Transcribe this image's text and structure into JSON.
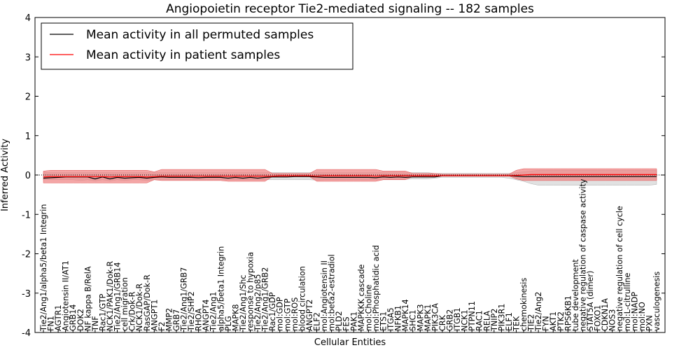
{
  "chart_data": {
    "type": "line",
    "title": "Angiopoietin receptor Tie2-mediated signaling -- 182 samples",
    "xlabel": "Cellular Entities",
    "ylabel": "Inferred Activity",
    "ylim": [
      -4,
      4
    ],
    "yticks": [
      "-4",
      "-3",
      "-2",
      "-1",
      "0",
      "1",
      "2",
      "3",
      "4"
    ],
    "grid": false,
    "legend": {
      "placement": "top-left",
      "entries": [
        {
          "name": "Mean activity in all permuted samples",
          "color": "#000000"
        },
        {
          "name": "Mean activity in patient samples",
          "color": "#ff0000"
        }
      ]
    },
    "categories": [
      "Tie2/Ang1/alpha5/beta1 Integrin",
      "FN1",
      "AGTR1",
      "Angiotensin II/AT1",
      "GRB14",
      "DOK2",
      "NF kappa B/RelA",
      "TNF",
      "Rac1/GTP",
      "NCK1/PAK1/Dok-R",
      "Tie2/Ang1/GRB14",
      "cell migration",
      "Crk/Dok-R",
      "NCK1/Dok-R",
      "RasGAP/Dok-R",
      "ANGPT1",
      "F2",
      "MMP2",
      "GRB7",
      "Tie2/Ang1/GRB7",
      "Tie2/SHP2",
      "RHOA",
      "ANGPT4",
      "Tie2/Ang1",
      "alpha5/beta1 Integrin",
      "PLG",
      "MAPK8",
      "Tie2/Ang1/Shc",
      "response to hypoxia",
      "Tie2/Ang2/p85",
      "Tie2/Ang1/GRB2",
      "Rac1/GDP",
      "mol:GDP",
      "mol:GTP",
      "mol:ROS",
      "blood circulation",
      "ANGPT2",
      "ELF2",
      "mol:Angiotensin II",
      "mol:beta2-estradiol",
      "PLD2",
      "FES",
      "PAK1",
      "MAPKKK cascade",
      "mol:Choline",
      "mol:Phosphatidic acid",
      "ETS1",
      "ITGA5",
      "NFKB1",
      "MAPK14",
      "SHC1",
      "MAPK3",
      "MAPK1",
      "PIK3CA",
      "CRK",
      "GRB2",
      "ITGB1",
      "NCK1",
      "PTPN11",
      "RAC1",
      "RELA",
      "TNIP2",
      "PIK3R1",
      "ELF1",
      "TEK",
      "chemokinesis",
      "TIE2",
      "Tie2/Ang2",
      "FYN",
      "AKT1",
      "PTK2",
      "RPS6KB1",
      "tube development",
      "negative regulation of caspase activity",
      "STAT5A (dimer)",
      "FOXO1",
      "CDKN1A",
      "NOS3",
      "negative regulation of cell cycle",
      "mol:L-citrulline",
      "mol:NADP",
      "mol:NO",
      "PXN",
      "vasculogenesis"
    ],
    "series": [
      {
        "name": "Mean activity in all permuted samples",
        "color": "#000000",
        "values": [
          -0.08,
          -0.07,
          -0.06,
          -0.05,
          -0.05,
          -0.05,
          -0.05,
          -0.1,
          -0.05,
          -0.1,
          -0.06,
          -0.08,
          -0.07,
          -0.06,
          -0.08,
          -0.06,
          -0.05,
          -0.06,
          -0.06,
          -0.06,
          -0.06,
          -0.07,
          -0.06,
          -0.06,
          -0.06,
          -0.08,
          -0.06,
          -0.08,
          -0.06,
          -0.08,
          -0.06,
          -0.05,
          -0.05,
          -0.05,
          -0.04,
          -0.04,
          -0.04,
          -0.05,
          -0.06,
          -0.06,
          -0.06,
          -0.06,
          -0.06,
          -0.06,
          -0.06,
          -0.07,
          -0.05,
          -0.06,
          -0.05,
          -0.06,
          -0.05,
          -0.05,
          -0.05,
          -0.05,
          -0.02,
          -0.02,
          -0.02,
          -0.02,
          -0.02,
          -0.02,
          -0.02,
          -0.02,
          -0.02,
          -0.02,
          -0.03,
          -0.04,
          -0.04,
          -0.04,
          -0.04,
          -0.04,
          -0.04,
          -0.04,
          -0.04,
          -0.04,
          -0.04,
          -0.04,
          -0.04,
          -0.04,
          -0.04,
          -0.04,
          -0.04,
          -0.04,
          -0.04,
          -0.04
        ],
        "lower": [
          -0.12,
          -0.12,
          -0.12,
          -0.12,
          -0.12,
          -0.14,
          -0.12,
          -0.15,
          -0.12,
          -0.15,
          -0.12,
          -0.14,
          -0.12,
          -0.12,
          -0.14,
          -0.12,
          -0.12,
          -0.12,
          -0.12,
          -0.12,
          -0.12,
          -0.12,
          -0.12,
          -0.12,
          -0.12,
          -0.12,
          -0.12,
          -0.12,
          -0.12,
          -0.12,
          -0.12,
          -0.12,
          -0.12,
          -0.12,
          -0.12,
          -0.12,
          -0.12,
          -0.13,
          -0.12,
          -0.12,
          -0.12,
          -0.12,
          -0.12,
          -0.12,
          -0.12,
          -0.12,
          -0.11,
          -0.11,
          -0.11,
          -0.11,
          -0.1,
          -0.1,
          -0.1,
          -0.08,
          -0.06,
          -0.06,
          -0.06,
          -0.06,
          -0.06,
          -0.06,
          -0.06,
          -0.06,
          -0.06,
          -0.08,
          -0.12,
          -0.16,
          -0.22,
          -0.26,
          -0.26,
          -0.26,
          -0.26,
          -0.26,
          -0.26,
          -0.26,
          -0.26,
          -0.26,
          -0.26,
          -0.26,
          -0.26,
          -0.26,
          -0.26,
          -0.26,
          -0.26,
          -0.24
        ],
        "upper": [
          0.06,
          0.06,
          0.06,
          0.06,
          0.06,
          0.06,
          0.06,
          0.06,
          0.06,
          0.06,
          0.06,
          0.06,
          0.06,
          0.06,
          0.06,
          0.06,
          0.06,
          0.06,
          0.06,
          0.06,
          0.06,
          0.06,
          0.06,
          0.06,
          0.06,
          0.06,
          0.06,
          0.06,
          0.06,
          0.06,
          0.06,
          0.06,
          0.06,
          0.06,
          0.06,
          0.06,
          0.06,
          0.06,
          0.06,
          0.06,
          0.06,
          0.06,
          0.06,
          0.06,
          0.06,
          0.06,
          0.06,
          0.06,
          0.06,
          0.06,
          0.06,
          0.06,
          0.06,
          0.04,
          0.04,
          0.04,
          0.04,
          0.04,
          0.04,
          0.04,
          0.04,
          0.04,
          0.04,
          0.04,
          0.06,
          0.08,
          0.1,
          0.12,
          0.12,
          0.12,
          0.12,
          0.12,
          0.12,
          0.12,
          0.12,
          0.12,
          0.12,
          0.12,
          0.12,
          0.12,
          0.12,
          0.12,
          0.12,
          0.12
        ]
      },
      {
        "name": "Mean activity in patient samples",
        "color": "#ff0000",
        "values": [
          -0.05,
          -0.04,
          -0.04,
          -0.04,
          -0.04,
          -0.04,
          -0.04,
          -0.04,
          -0.04,
          -0.05,
          -0.04,
          -0.04,
          -0.04,
          -0.04,
          -0.05,
          -0.04,
          -0.03,
          -0.03,
          -0.03,
          -0.03,
          -0.03,
          -0.03,
          -0.03,
          -0.03,
          -0.03,
          -0.03,
          -0.03,
          -0.03,
          -0.03,
          -0.03,
          -0.03,
          -0.03,
          -0.02,
          -0.02,
          -0.02,
          -0.02,
          -0.02,
          -0.03,
          -0.02,
          -0.02,
          -0.02,
          -0.02,
          -0.02,
          -0.02,
          -0.02,
          -0.03,
          -0.02,
          -0.02,
          -0.02,
          -0.02,
          -0.02,
          -0.02,
          -0.02,
          -0.02,
          -0.02,
          -0.02,
          -0.02,
          -0.02,
          -0.02,
          -0.02,
          -0.02,
          -0.02,
          -0.02,
          -0.02,
          -0.01,
          0.0,
          0.01,
          0.01,
          0.01,
          0.01,
          0.01,
          0.01,
          0.01,
          0.01,
          0.01,
          0.01,
          0.01,
          0.01,
          0.01,
          0.01,
          0.01,
          0.01,
          0.01,
          0.01
        ],
        "lower": [
          -0.2,
          -0.2,
          -0.2,
          -0.2,
          -0.2,
          -0.2,
          -0.2,
          -0.2,
          -0.2,
          -0.2,
          -0.2,
          -0.2,
          -0.2,
          -0.2,
          -0.2,
          -0.12,
          -0.14,
          -0.14,
          -0.14,
          -0.14,
          -0.14,
          -0.14,
          -0.14,
          -0.14,
          -0.14,
          -0.16,
          -0.16,
          -0.16,
          -0.16,
          -0.16,
          -0.16,
          -0.04,
          -0.04,
          -0.04,
          -0.04,
          -0.04,
          -0.04,
          -0.16,
          -0.16,
          -0.16,
          -0.16,
          -0.16,
          -0.16,
          -0.16,
          -0.16,
          -0.16,
          -0.12,
          -0.12,
          -0.12,
          -0.12,
          -0.04,
          -0.04,
          -0.04,
          -0.04,
          -0.02,
          -0.02,
          -0.02,
          -0.02,
          -0.02,
          -0.02,
          -0.02,
          -0.02,
          -0.02,
          -0.02,
          -0.1,
          -0.14,
          -0.14,
          -0.14,
          -0.14,
          -0.14,
          -0.14,
          -0.14,
          -0.14,
          -0.14,
          -0.14,
          -0.14,
          -0.14,
          -0.14,
          -0.14,
          -0.14,
          -0.14,
          -0.14,
          -0.14,
          -0.14
        ],
        "upper": [
          0.1,
          0.12,
          0.12,
          0.12,
          0.12,
          0.12,
          0.12,
          0.12,
          0.12,
          0.12,
          0.12,
          0.12,
          0.12,
          0.12,
          0.12,
          0.08,
          0.14,
          0.14,
          0.14,
          0.14,
          0.14,
          0.14,
          0.14,
          0.14,
          0.14,
          0.14,
          0.14,
          0.14,
          0.14,
          0.14,
          0.14,
          0.04,
          0.04,
          0.04,
          0.04,
          0.04,
          0.04,
          0.14,
          0.14,
          0.14,
          0.14,
          0.14,
          0.14,
          0.14,
          0.14,
          0.14,
          0.1,
          0.1,
          0.1,
          0.1,
          0.04,
          0.04,
          0.04,
          0.04,
          0.02,
          0.02,
          0.02,
          0.02,
          0.02,
          0.02,
          0.02,
          0.02,
          0.02,
          0.02,
          0.12,
          0.16,
          0.16,
          0.16,
          0.16,
          0.16,
          0.16,
          0.16,
          0.16,
          0.16,
          0.16,
          0.16,
          0.16,
          0.16,
          0.16,
          0.16,
          0.16,
          0.16,
          0.16,
          0.16
        ]
      }
    ]
  }
}
